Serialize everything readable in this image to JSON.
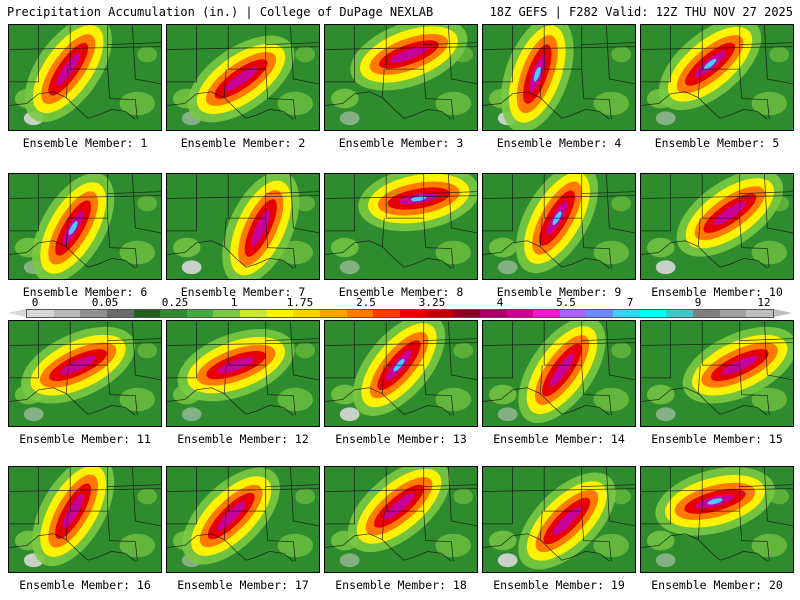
{
  "header": {
    "title": "Precipitation Accumulation (in.) | College of DuPage NEXLAB",
    "run_info": "18Z GEFS | F282 Valid: 12Z THU NOV 27 2025"
  },
  "members": [
    {
      "label": "Ensemble Member: 1"
    },
    {
      "label": "Ensemble Member: 2"
    },
    {
      "label": "Ensemble Member: 3"
    },
    {
      "label": "Ensemble Member: 4"
    },
    {
      "label": "Ensemble Member: 5"
    },
    {
      "label": "Ensemble Member: 6"
    },
    {
      "label": "Ensemble Member: 7"
    },
    {
      "label": "Ensemble Member: 8"
    },
    {
      "label": "Ensemble Member: 9"
    },
    {
      "label": "Ensemble Member: 10"
    },
    {
      "label": "Ensemble Member: 11"
    },
    {
      "label": "Ensemble Member: 12"
    },
    {
      "label": "Ensemble Member: 13"
    },
    {
      "label": "Ensemble Member: 14"
    },
    {
      "label": "Ensemble Member: 15"
    },
    {
      "label": "Ensemble Member: 16"
    },
    {
      "label": "Ensemble Member: 17"
    },
    {
      "label": "Ensemble Member: 18"
    },
    {
      "label": "Ensemble Member: 19"
    },
    {
      "label": "Ensemble Member: 20"
    }
  ],
  "colorbar": {
    "labels": [
      "0",
      "0.05",
      "0.25",
      "1",
      "1.75",
      "2.5",
      "3.25",
      "4",
      "5.5",
      "7",
      "9",
      "12"
    ],
    "colors": [
      "#d8d8d8",
      "#b8b8b8",
      "#909090",
      "#6a6a6a",
      "#1e5f1e",
      "#2e8b2e",
      "#3fae3f",
      "#7ac943",
      "#c8e63c",
      "#fff200",
      "#ffd000",
      "#ffa500",
      "#ff7a00",
      "#ff3c00",
      "#e60000",
      "#b80000",
      "#8b0020",
      "#a0006e",
      "#c8009a",
      "#e020d0",
      "#b060ff",
      "#6a8cff",
      "#40d0ff",
      "#00ffff",
      "#40c8c8",
      "#808080",
      "#a0a0a0",
      "#bebebe"
    ]
  },
  "palette": {
    "dry": "#2e8b2e",
    "light": "#7ac943",
    "moderate": "#fff200",
    "heavy": "#ff7a00",
    "very_heavy": "#e60000",
    "extreme": "#c8009a",
    "max": "#40d0ff",
    "minimal": "#d8d8d8"
  }
}
